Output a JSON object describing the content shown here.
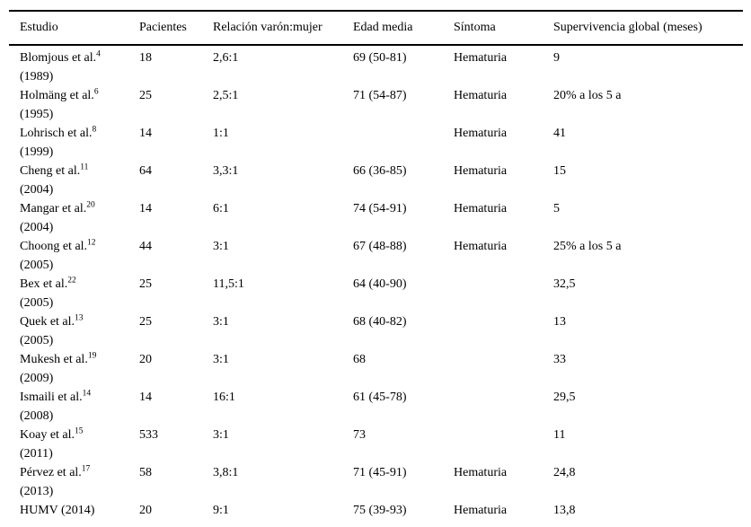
{
  "table": {
    "columns": [
      "Estudio",
      "Pacientes",
      "Relación varón:mujer",
      "Edad media",
      "Síntoma",
      "Supervivencia global (meses)"
    ],
    "rows": [
      {
        "study": "Blomjous et al.",
        "ref": "4",
        "year": "(1989)",
        "patients": "18",
        "ratio": "2,6:1",
        "age": "69 (50-81)",
        "symptom": "Hematuria",
        "survival": "9"
      },
      {
        "study": "Holmäng et al.",
        "ref": "6",
        "year": "(1995)",
        "patients": "25",
        "ratio": "2,5:1",
        "age": "71 (54-87)",
        "symptom": "Hematuria",
        "survival": "20% a los 5 a"
      },
      {
        "study": "Lohrisch et al.",
        "ref": "8",
        "year": "(1999)",
        "patients": "14",
        "ratio": "1:1",
        "age": "",
        "symptom": "Hematuria",
        "survival": "41"
      },
      {
        "study": "Cheng et al.",
        "ref": "11",
        "year": "(2004)",
        "patients": "64",
        "ratio": "3,3:1",
        "age": "66 (36-85)",
        "symptom": "Hematuria",
        "survival": "15"
      },
      {
        "study": "Mangar et al.",
        "ref": "20",
        "year": "(2004)",
        "patients": "14",
        "ratio": "6:1",
        "age": "74 (54-91)",
        "symptom": "Hematuria",
        "survival": "5"
      },
      {
        "study": "Choong et al.",
        "ref": "12",
        "year": "(2005)",
        "patients": "44",
        "ratio": "3:1",
        "age": "67 (48-88)",
        "symptom": "Hematuria",
        "survival": "25% a los 5 a"
      },
      {
        "study": "Bex et al.",
        "ref": "22",
        "year": "(2005)",
        "patients": "25",
        "ratio": "11,5:1",
        "age": "64 (40-90)",
        "symptom": "",
        "survival": "32,5"
      },
      {
        "study": "Quek et al.",
        "ref": "13",
        "year": "(2005)",
        "patients": "25",
        "ratio": "3:1",
        "age": "68 (40-82)",
        "symptom": "",
        "survival": "13"
      },
      {
        "study": "Mukesh et al.",
        "ref": "19",
        "year": "(2009)",
        "patients": "20",
        "ratio": "3:1",
        "age": "68",
        "symptom": "",
        "survival": "33"
      },
      {
        "study": "Ismaili et al.",
        "ref": "14",
        "year": "(2008)",
        "patients": "14",
        "ratio": "16:1",
        "age": "61 (45-78)",
        "symptom": "",
        "survival": "29,5"
      },
      {
        "study": "Koay et al.",
        "ref": "15",
        "year": "(2011)",
        "patients": "533",
        "ratio": "3:1",
        "age": "73",
        "symptom": "",
        "survival": "11"
      },
      {
        "study": "Pérvez et al.",
        "ref": "17",
        "year": "(2013)",
        "patients": "58",
        "ratio": "3,8:1",
        "age": "71 (45-91)",
        "symptom": "Hematuria",
        "survival": "24,8"
      },
      {
        "study": "HUMV (2014)",
        "ref": "",
        "year": "",
        "patients": "20",
        "ratio": "9:1",
        "age": "75 (39-93)",
        "symptom": "Hematuria",
        "survival": "13,8"
      }
    ]
  }
}
